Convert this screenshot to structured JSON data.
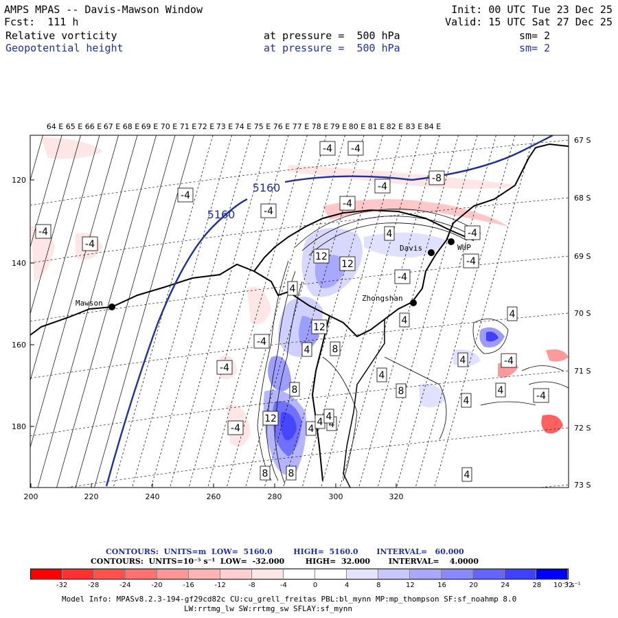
{
  "header": {
    "title": "AMPS MPAS -- Davis-Mawson Window",
    "init": "Init: 00 UTC Tue 23 Dec 25",
    "fcst": "Fcst:  111 h",
    "valid": "Valid: 15 UTC Sat 27 Dec 25",
    "field1": "Relative vorticity",
    "field1_level": "at pressure =  500 hPa",
    "field1_sm": "sm= 2",
    "field2": "Geopotential height",
    "field2_level": "at pressure =  500 hPa",
    "field2_sm": "sm= 2"
  },
  "colors": {
    "height_contour": "#1f2f9f",
    "negative": "#ff0000",
    "positive": "#0000ff"
  },
  "map": {
    "top_lon_labels": [
      "64 E",
      "65 E",
      "66 E",
      "67 E",
      "68 E",
      "69 E",
      "70 E",
      "71 E",
      "72 E",
      "73 E",
      "74 E",
      "75 E",
      "76 E",
      "77 E",
      "78 E",
      "79 E",
      "80 E",
      "81 E",
      "82 E",
      "83 E",
      "84 E"
    ],
    "right_lat_labels": [
      "67 S",
      "68 S",
      "69 S",
      "70 S",
      "71 S",
      "72 S",
      "73 S"
    ],
    "x_ticks": [
      "200",
      "220",
      "240",
      "260",
      "280",
      "300",
      "320"
    ],
    "y_ticks": [
      "120",
      "140",
      "160",
      "180"
    ],
    "stations": [
      {
        "name": "Mawson"
      },
      {
        "name": "Davis"
      },
      {
        "name": "WUP"
      },
      {
        "name": "Zhongshan"
      }
    ],
    "height_contour_labels": [
      "5160",
      "5160"
    ],
    "vort_labels": [
      "-4",
      "-4",
      "-4",
      "-4",
      "-8",
      "-4",
      "-4",
      "-4",
      "-4",
      "-4",
      "-4",
      "-4",
      "-4",
      "-4",
      "-4",
      "-4",
      "-4",
      "12",
      "12",
      "12",
      "8",
      "8",
      "12",
      "8",
      "8",
      "8",
      "4",
      "4",
      "4",
      "4",
      "4",
      "4",
      "4",
      "4",
      "4",
      "4",
      "4",
      "4",
      "4",
      "4"
    ]
  },
  "legend": {
    "contours_height": "CONTOURS:  UNITS=m  LOW=  5160.0        HIGH=  5160.0       INTERVAL=   60.000",
    "contours_vort": "CONTOURS:  UNITS=10⁻⁵ s⁻¹  LOW=  -32.000        HIGH=  32.000       INTERVAL=    4.0000",
    "colorbar_labels": [
      "-32",
      "-28",
      "-24",
      "-20",
      "-16",
      "-12",
      "-8",
      "-4",
      "0",
      "4",
      "8",
      "12",
      "16",
      "20",
      "24",
      "28",
      "32"
    ],
    "colorbar_unit": "10⁻⁵ s⁻¹",
    "colorbar_colors": [
      "#ff0000",
      "#ff3030",
      "#ff5050",
      "#ff7070",
      "#ff9595",
      "#ffb4b4",
      "#ffcfcf",
      "#ffe6e6",
      "#ffffff",
      "#ffffff",
      "#e4e4ff",
      "#c8c8ff",
      "#a8a8ff",
      "#8888ff",
      "#6464ff",
      "#4040ff",
      "#0000ff"
    ]
  },
  "model_info": {
    "line1": "Model Info: MPASv8.2.3-194-gf29cd82c CU:cu_grell_freitas PBL:bl_mynn MP:mp_thompson SF:sf_noahmp 8.0",
    "line2": "LW:rrtmg_lw SW:rrtmg_sw SFLAY:sf_mynn"
  }
}
